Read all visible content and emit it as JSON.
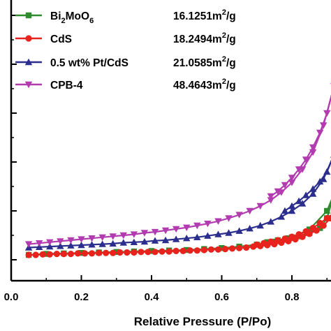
{
  "chart_data": {
    "type": "line",
    "title": "",
    "xlabel": "Relative Pressure (P/Po)",
    "ylabel": "",
    "xlim": [
      0.0,
      0.92
    ],
    "ylim": [
      -0.3,
      6.2
    ],
    "x_ticks": [
      "0.0",
      "0.2",
      "0.4",
      "0.6",
      "0.8"
    ],
    "y_ticks": [
      0,
      1,
      2,
      3,
      4,
      5,
      6
    ],
    "legend": {
      "placement": "top-left",
      "entries": [
        {
          "label_main": "Bi",
          "label_sub1": "2",
          "label_mid": "MoO",
          "label_sub2": "6",
          "area": "16.1251m",
          "area_sup": "2",
          "area_unit": "/g"
        },
        {
          "label_main": "CdS",
          "area": "18.2494m",
          "area_sup": "2",
          "area_unit": "/g"
        },
        {
          "label_main": "0.5 wt% Pt/CdS",
          "area": "21.0585m",
          "area_sup": "2",
          "area_unit": "/g"
        },
        {
          "label_main": "CPB-4",
          "area": "48.4643m",
          "area_sup": "2",
          "area_unit": "/g"
        }
      ]
    },
    "series": [
      {
        "name": "Bi2MoO6",
        "color": "#2e8b2e",
        "marker": "square",
        "adsorption": {
          "x": [
            0.05,
            0.1,
            0.15,
            0.2,
            0.25,
            0.3,
            0.35,
            0.4,
            0.45,
            0.5,
            0.55,
            0.6,
            0.65,
            0.7,
            0.75,
            0.8,
            0.85,
            0.9,
            0.92
          ],
          "y": [
            0.1,
            0.12,
            0.13,
            0.14,
            0.15,
            0.16,
            0.17,
            0.18,
            0.19,
            0.2,
            0.22,
            0.24,
            0.27,
            0.31,
            0.37,
            0.46,
            0.62,
            1.0,
            1.35
          ]
        },
        "desorption": {
          "x": [
            0.92,
            0.9,
            0.88,
            0.85,
            0.82,
            0.79,
            0.76,
            0.73
          ],
          "y": [
            1.35,
            0.85,
            0.65,
            0.55,
            0.48,
            0.44,
            0.4,
            0.36
          ]
        }
      },
      {
        "name": "CdS",
        "color": "#e8231e",
        "marker": "circle",
        "adsorption": {
          "x": [
            0.05,
            0.07,
            0.09,
            0.11,
            0.13,
            0.15,
            0.17,
            0.19,
            0.21,
            0.23,
            0.25,
            0.27,
            0.29,
            0.31,
            0.33,
            0.35,
            0.37,
            0.39,
            0.41,
            0.43,
            0.45,
            0.47,
            0.49,
            0.51,
            0.53,
            0.55,
            0.57,
            0.59,
            0.61,
            0.63,
            0.65,
            0.67,
            0.69,
            0.71,
            0.73,
            0.75,
            0.77,
            0.79,
            0.81,
            0.83,
            0.85,
            0.87,
            0.89,
            0.91,
            0.92
          ],
          "y": [
            0.1,
            0.1,
            0.11,
            0.11,
            0.12,
            0.12,
            0.12,
            0.13,
            0.13,
            0.13,
            0.14,
            0.14,
            0.14,
            0.15,
            0.15,
            0.15,
            0.16,
            0.16,
            0.16,
            0.17,
            0.17,
            0.18,
            0.18,
            0.19,
            0.19,
            0.2,
            0.21,
            0.21,
            0.22,
            0.23,
            0.24,
            0.25,
            0.27,
            0.28,
            0.3,
            0.32,
            0.35,
            0.38,
            0.42,
            0.47,
            0.53,
            0.6,
            0.7,
            0.85,
            0.95
          ]
        },
        "desorption": {
          "x": [
            0.92,
            0.9,
            0.88,
            0.86,
            0.84,
            0.82,
            0.8,
            0.78,
            0.76,
            0.74,
            0.72,
            0.7
          ],
          "y": [
            0.95,
            0.85,
            0.75,
            0.65,
            0.58,
            0.52,
            0.47,
            0.43,
            0.4,
            0.37,
            0.34,
            0.31
          ]
        }
      },
      {
        "name": "0.5 wt% Pt/CdS",
        "color": "#2b2e8c",
        "marker": "triangle-up",
        "adsorption": {
          "x": [
            0.05,
            0.08,
            0.11,
            0.14,
            0.17,
            0.2,
            0.23,
            0.26,
            0.29,
            0.32,
            0.35,
            0.38,
            0.41,
            0.44,
            0.47,
            0.5,
            0.53,
            0.56,
            0.59,
            0.62,
            0.65,
            0.68,
            0.71,
            0.74,
            0.77,
            0.8,
            0.83,
            0.86,
            0.89,
            0.92
          ],
          "y": [
            0.25,
            0.26,
            0.27,
            0.28,
            0.29,
            0.3,
            0.31,
            0.32,
            0.33,
            0.35,
            0.36,
            0.37,
            0.39,
            0.4,
            0.42,
            0.44,
            0.46,
            0.49,
            0.52,
            0.55,
            0.59,
            0.64,
            0.7,
            0.78,
            0.88,
            1.0,
            1.15,
            1.35,
            1.65,
            2.15
          ]
        },
        "desorption": {
          "x": [
            0.92,
            0.9,
            0.88,
            0.86,
            0.84,
            0.82,
            0.8,
            0.78
          ],
          "y": [
            2.15,
            1.8,
            1.6,
            1.45,
            1.32,
            1.2,
            1.1,
            1.0
          ]
        }
      },
      {
        "name": "CPB-4",
        "color": "#b23bb0",
        "marker": "triangle-down",
        "adsorption": {
          "x": [
            0.05,
            0.08,
            0.11,
            0.14,
            0.17,
            0.2,
            0.23,
            0.26,
            0.29,
            0.32,
            0.35,
            0.38,
            0.41,
            0.44,
            0.47,
            0.5,
            0.53,
            0.56,
            0.59,
            0.62,
            0.65,
            0.68,
            0.71,
            0.74,
            0.77,
            0.8,
            0.83,
            0.86,
            0.89,
            0.92
          ],
          "y": [
            0.32,
            0.34,
            0.36,
            0.38,
            0.4,
            0.42,
            0.44,
            0.46,
            0.48,
            0.5,
            0.52,
            0.55,
            0.57,
            0.6,
            0.63,
            0.66,
            0.7,
            0.74,
            0.79,
            0.85,
            0.92,
            1.0,
            1.1,
            1.22,
            1.38,
            1.58,
            1.85,
            2.2,
            2.75,
            3.55
          ]
        },
        "desorption": {
          "x": [
            0.92,
            0.9,
            0.88,
            0.86,
            0.84,
            0.82,
            0.8,
            0.78,
            0.76,
            0.74
          ],
          "y": [
            3.55,
            3.0,
            2.6,
            2.3,
            2.05,
            1.85,
            1.68,
            1.53,
            1.4,
            1.3
          ]
        }
      }
    ]
  }
}
